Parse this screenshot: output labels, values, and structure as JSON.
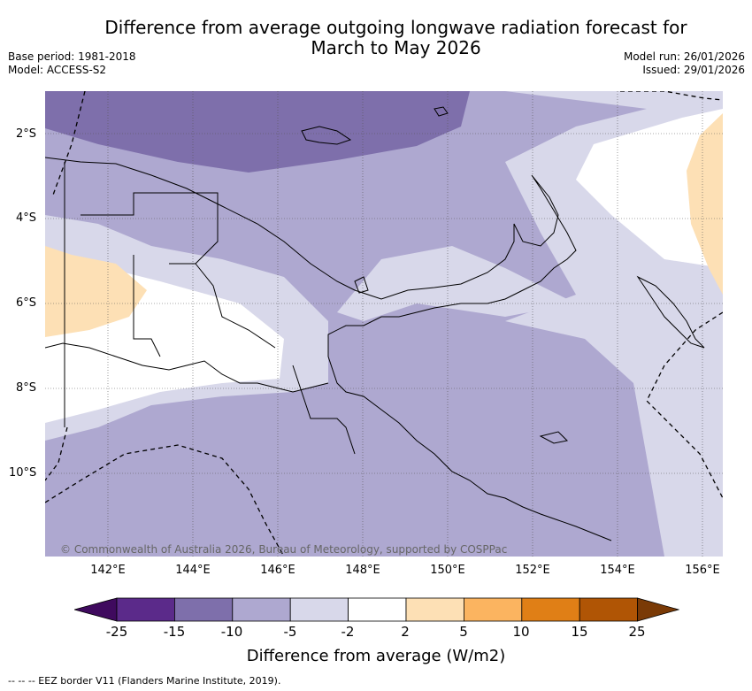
{
  "header": {
    "title_line1": "Difference from average outgoing longwave radiation forecast for",
    "title_line2": "March to May 2026",
    "base_period": "Base period: 1981-2018",
    "model": "Model: ACCESS-S2",
    "model_run": "Model run: 26/01/2026",
    "issued": "Issued: 29/01/2026"
  },
  "map": {
    "lat_labels": [
      "2°S",
      "4°S",
      "6°S",
      "8°S",
      "10°S"
    ],
    "lon_labels": [
      "142°E",
      "144°E",
      "146°E",
      "148°E",
      "150°E",
      "152°E",
      "154°E",
      "156°E"
    ],
    "copyright": "© Commonwealth of Australia 2026, Bureau of Meteorology, supported by COSPPac"
  },
  "legend": {
    "ticks": [
      "-25",
      "-15",
      "-10",
      "-5",
      "-2",
      "2",
      "5",
      "10",
      "15",
      "25"
    ],
    "colors": [
      "#3f0a5e",
      "#5b2a8a",
      "#7e6fab",
      "#aea8d0",
      "#d8d8ea",
      "#ffffff",
      "#fde0b5",
      "#fbb460",
      "#e07f16",
      "#b05505",
      "#7a3a06"
    ],
    "title": "Difference from average (W/m2)"
  },
  "footer": {
    "eez_note": "-- -- -- EEZ border V11 (Flanders Marine Institute, 2019)."
  }
}
